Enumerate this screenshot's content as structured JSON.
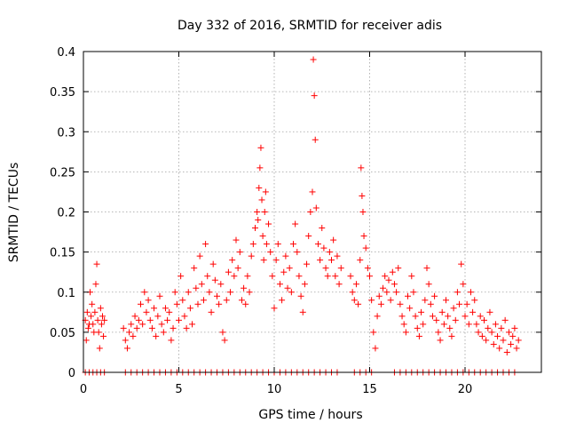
{
  "chart_data": {
    "type": "scatter",
    "title": "Day 332 of 2016, SRMTID for receiver adis",
    "xlabel": "GPS time / hours",
    "ylabel": "SRMTID / TECUs",
    "xlim": [
      0,
      24
    ],
    "ylim": [
      0,
      0.4
    ],
    "xticks": [
      0,
      5,
      10,
      15,
      20
    ],
    "xtick_labels": [
      "0",
      "5",
      "10",
      "15",
      "20"
    ],
    "yticks": [
      0,
      0.05,
      0.1,
      0.15,
      0.2,
      0.25,
      0.3,
      0.35,
      0.4
    ],
    "ytick_labels": [
      "0",
      "0.05",
      "0.1",
      "0.15",
      "0.2",
      "0.25",
      "0.3",
      "0.35",
      "0.4"
    ],
    "grid": true,
    "marker": "plus",
    "color": "#ff0000",
    "series": [
      {
        "name": "SRMTID",
        "points": [
          [
            0.1,
            0.065
          ],
          [
            0.15,
            0.04
          ],
          [
            0.2,
            0.075
          ],
          [
            0.25,
            0.055
          ],
          [
            0.3,
            0.06
          ],
          [
            0.35,
            0.1
          ],
          [
            0.4,
            0.07
          ],
          [
            0.45,
            0.085
          ],
          [
            0.5,
            0.06
          ],
          [
            0.55,
            0.05
          ],
          [
            0.6,
            0.075
          ],
          [
            0.65,
            0.11
          ],
          [
            0.7,
            0.135
          ],
          [
            0.75,
            0.065
          ],
          [
            0.8,
            0.05
          ],
          [
            0.85,
            0.03
          ],
          [
            0.9,
            0.08
          ],
          [
            0.95,
            0.06
          ],
          [
            1.0,
            0.07
          ],
          [
            1.05,
            0.045
          ],
          [
            1.1,
            0.065
          ],
          [
            2.1,
            0.055
          ],
          [
            2.2,
            0.04
          ],
          [
            2.3,
            0.03
          ],
          [
            2.4,
            0.05
          ],
          [
            2.5,
            0.06
          ],
          [
            2.6,
            0.045
          ],
          [
            2.7,
            0.07
          ],
          [
            2.8,
            0.055
          ],
          [
            2.9,
            0.065
          ],
          [
            3.0,
            0.085
          ],
          [
            3.1,
            0.06
          ],
          [
            3.2,
            0.1
          ],
          [
            3.3,
            0.075
          ],
          [
            3.4,
            0.09
          ],
          [
            3.5,
            0.065
          ],
          [
            3.6,
            0.055
          ],
          [
            3.7,
            0.08
          ],
          [
            3.8,
            0.045
          ],
          [
            3.9,
            0.07
          ],
          [
            4.0,
            0.095
          ],
          [
            4.1,
            0.06
          ],
          [
            4.2,
            0.05
          ],
          [
            4.3,
            0.08
          ],
          [
            4.4,
            0.065
          ],
          [
            4.5,
            0.075
          ],
          [
            4.6,
            0.04
          ],
          [
            4.7,
            0.055
          ],
          [
            4.8,
            0.1
          ],
          [
            4.9,
            0.085
          ],
          [
            5.0,
            0.065
          ],
          [
            5.1,
            0.12
          ],
          [
            5.2,
            0.09
          ],
          [
            5.3,
            0.07
          ],
          [
            5.4,
            0.055
          ],
          [
            5.5,
            0.1
          ],
          [
            5.6,
            0.08
          ],
          [
            5.7,
            0.06
          ],
          [
            5.8,
            0.13
          ],
          [
            5.9,
            0.105
          ],
          [
            6.0,
            0.085
          ],
          [
            6.1,
            0.145
          ],
          [
            6.2,
            0.11
          ],
          [
            6.3,
            0.09
          ],
          [
            6.4,
            0.16
          ],
          [
            6.5,
            0.12
          ],
          [
            6.6,
            0.1
          ],
          [
            6.7,
            0.075
          ],
          [
            6.8,
            0.135
          ],
          [
            6.9,
            0.115
          ],
          [
            7.0,
            0.095
          ],
          [
            7.1,
            0.085
          ],
          [
            7.2,
            0.11
          ],
          [
            7.3,
            0.05
          ],
          [
            7.4,
            0.04
          ],
          [
            7.5,
            0.09
          ],
          [
            7.6,
            0.125
          ],
          [
            7.7,
            0.1
          ],
          [
            7.8,
            0.14
          ],
          [
            7.9,
            0.12
          ],
          [
            8.0,
            0.165
          ],
          [
            8.1,
            0.13
          ],
          [
            8.2,
            0.15
          ],
          [
            8.3,
            0.09
          ],
          [
            8.4,
            0.105
          ],
          [
            8.5,
            0.085
          ],
          [
            8.6,
            0.12
          ],
          [
            8.7,
            0.1
          ],
          [
            8.8,
            0.145
          ],
          [
            8.9,
            0.16
          ],
          [
            9.0,
            0.18
          ],
          [
            9.1,
            0.2
          ],
          [
            9.15,
            0.19
          ],
          [
            9.2,
            0.23
          ],
          [
            9.25,
            0.255
          ],
          [
            9.3,
            0.28
          ],
          [
            9.35,
            0.215
          ],
          [
            9.4,
            0.17
          ],
          [
            9.45,
            0.14
          ],
          [
            9.5,
            0.2
          ],
          [
            9.55,
            0.225
          ],
          [
            9.6,
            0.16
          ],
          [
            9.7,
            0.185
          ],
          [
            9.8,
            0.15
          ],
          [
            9.9,
            0.12
          ],
          [
            10.0,
            0.08
          ],
          [
            10.1,
            0.14
          ],
          [
            10.2,
            0.16
          ],
          [
            10.3,
            0.11
          ],
          [
            10.4,
            0.09
          ],
          [
            10.5,
            0.125
          ],
          [
            10.6,
            0.145
          ],
          [
            10.7,
            0.105
          ],
          [
            10.8,
            0.13
          ],
          [
            10.9,
            0.1
          ],
          [
            11.0,
            0.16
          ],
          [
            11.1,
            0.185
          ],
          [
            11.2,
            0.15
          ],
          [
            11.3,
            0.12
          ],
          [
            11.4,
            0.095
          ],
          [
            11.5,
            0.075
          ],
          [
            11.6,
            0.11
          ],
          [
            11.7,
            0.135
          ],
          [
            11.8,
            0.17
          ],
          [
            11.9,
            0.2
          ],
          [
            12.0,
            0.225
          ],
          [
            12.05,
            0.39
          ],
          [
            12.1,
            0.345
          ],
          [
            12.15,
            0.29
          ],
          [
            12.2,
            0.205
          ],
          [
            12.3,
            0.16
          ],
          [
            12.4,
            0.14
          ],
          [
            12.5,
            0.18
          ],
          [
            12.6,
            0.155
          ],
          [
            12.7,
            0.13
          ],
          [
            12.8,
            0.12
          ],
          [
            12.9,
            0.15
          ],
          [
            13.0,
            0.14
          ],
          [
            13.1,
            0.165
          ],
          [
            13.2,
            0.12
          ],
          [
            13.3,
            0.145
          ],
          [
            13.4,
            0.11
          ],
          [
            13.5,
            0.13
          ],
          [
            14.0,
            0.12
          ],
          [
            14.1,
            0.1
          ],
          [
            14.2,
            0.09
          ],
          [
            14.3,
            0.11
          ],
          [
            14.4,
            0.085
          ],
          [
            14.5,
            0.14
          ],
          [
            14.55,
            0.255
          ],
          [
            14.6,
            0.22
          ],
          [
            14.65,
            0.2
          ],
          [
            14.7,
            0.17
          ],
          [
            14.8,
            0.155
          ],
          [
            14.9,
            0.13
          ],
          [
            15.0,
            0.12
          ],
          [
            15.1,
            0.09
          ],
          [
            15.2,
            0.05
          ],
          [
            15.3,
            0.03
          ],
          [
            15.4,
            0.07
          ],
          [
            15.5,
            0.095
          ],
          [
            15.6,
            0.085
          ],
          [
            15.7,
            0.105
          ],
          [
            15.8,
            0.12
          ],
          [
            15.9,
            0.1
          ],
          [
            16.0,
            0.115
          ],
          [
            16.1,
            0.09
          ],
          [
            16.2,
            0.125
          ],
          [
            16.3,
            0.11
          ],
          [
            16.4,
            0.1
          ],
          [
            16.5,
            0.13
          ],
          [
            16.6,
            0.085
          ],
          [
            16.7,
            0.07
          ],
          [
            16.8,
            0.06
          ],
          [
            16.9,
            0.05
          ],
          [
            17.0,
            0.095
          ],
          [
            17.1,
            0.08
          ],
          [
            17.2,
            0.12
          ],
          [
            17.3,
            0.1
          ],
          [
            17.4,
            0.07
          ],
          [
            17.5,
            0.055
          ],
          [
            17.6,
            0.045
          ],
          [
            17.7,
            0.075
          ],
          [
            17.8,
            0.06
          ],
          [
            17.9,
            0.09
          ],
          [
            18.0,
            0.13
          ],
          [
            18.1,
            0.11
          ],
          [
            18.2,
            0.085
          ],
          [
            18.3,
            0.07
          ],
          [
            18.4,
            0.095
          ],
          [
            18.5,
            0.065
          ],
          [
            18.6,
            0.05
          ],
          [
            18.7,
            0.04
          ],
          [
            18.8,
            0.075
          ],
          [
            18.9,
            0.06
          ],
          [
            19.0,
            0.09
          ],
          [
            19.1,
            0.07
          ],
          [
            19.2,
            0.055
          ],
          [
            19.3,
            0.045
          ],
          [
            19.4,
            0.08
          ],
          [
            19.5,
            0.065
          ],
          [
            19.6,
            0.1
          ],
          [
            19.7,
            0.085
          ],
          [
            19.8,
            0.135
          ],
          [
            19.9,
            0.11
          ],
          [
            20.0,
            0.07
          ],
          [
            20.1,
            0.085
          ],
          [
            20.2,
            0.06
          ],
          [
            20.3,
            0.1
          ],
          [
            20.4,
            0.075
          ],
          [
            20.5,
            0.09
          ],
          [
            20.6,
            0.06
          ],
          [
            20.7,
            0.05
          ],
          [
            20.8,
            0.07
          ],
          [
            20.9,
            0.045
          ],
          [
            21.0,
            0.065
          ],
          [
            21.1,
            0.04
          ],
          [
            21.2,
            0.055
          ],
          [
            21.3,
            0.075
          ],
          [
            21.4,
            0.05
          ],
          [
            21.5,
            0.035
          ],
          [
            21.6,
            0.06
          ],
          [
            21.7,
            0.045
          ],
          [
            21.8,
            0.03
          ],
          [
            21.9,
            0.055
          ],
          [
            22.0,
            0.04
          ],
          [
            22.1,
            0.065
          ],
          [
            22.2,
            0.025
          ],
          [
            22.3,
            0.05
          ],
          [
            22.4,
            0.035
          ],
          [
            22.5,
            0.045
          ],
          [
            22.6,
            0.055
          ],
          [
            22.7,
            0.03
          ],
          [
            22.8,
            0.04
          ],
          [
            0.1,
            0
          ],
          [
            0.3,
            0
          ],
          [
            0.5,
            0
          ],
          [
            0.7,
            0
          ],
          [
            0.9,
            0
          ],
          [
            1.1,
            0
          ],
          [
            2.2,
            0
          ],
          [
            2.5,
            0
          ],
          [
            2.8,
            0
          ],
          [
            3.1,
            0
          ],
          [
            3.4,
            0
          ],
          [
            3.7,
            0
          ],
          [
            4.0,
            0
          ],
          [
            4.3,
            0
          ],
          [
            4.6,
            0
          ],
          [
            4.9,
            0
          ],
          [
            5.2,
            0
          ],
          [
            5.5,
            0
          ],
          [
            5.8,
            0
          ],
          [
            6.1,
            0
          ],
          [
            6.4,
            0
          ],
          [
            6.7,
            0
          ],
          [
            7.0,
            0
          ],
          [
            7.3,
            0
          ],
          [
            7.6,
            0
          ],
          [
            7.9,
            0
          ],
          [
            8.2,
            0
          ],
          [
            8.5,
            0
          ],
          [
            8.8,
            0
          ],
          [
            9.1,
            0
          ],
          [
            9.4,
            0
          ],
          [
            9.7,
            0
          ],
          [
            10.0,
            0
          ],
          [
            10.3,
            0
          ],
          [
            10.6,
            0
          ],
          [
            10.9,
            0
          ],
          [
            11.2,
            0
          ],
          [
            11.5,
            0
          ],
          [
            11.8,
            0
          ],
          [
            12.1,
            0
          ],
          [
            12.4,
            0
          ],
          [
            12.7,
            0
          ],
          [
            13.0,
            0
          ],
          [
            13.3,
            0
          ],
          [
            14.2,
            0
          ],
          [
            14.5,
            0
          ],
          [
            14.8,
            0
          ],
          [
            15.1,
            0
          ],
          [
            16.3,
            0
          ],
          [
            16.6,
            0
          ],
          [
            16.9,
            0
          ],
          [
            17.2,
            0
          ],
          [
            17.5,
            0
          ],
          [
            17.8,
            0
          ],
          [
            18.1,
            0
          ],
          [
            18.4,
            0
          ],
          [
            18.7,
            0
          ],
          [
            19.0,
            0
          ],
          [
            19.3,
            0
          ],
          [
            19.6,
            0
          ],
          [
            19.9,
            0
          ],
          [
            20.2,
            0
          ],
          [
            20.5,
            0
          ],
          [
            20.8,
            0
          ],
          [
            21.1,
            0
          ],
          [
            21.4,
            0
          ],
          [
            21.7,
            0
          ],
          [
            22.0,
            0
          ],
          [
            22.3,
            0
          ],
          [
            22.6,
            0
          ]
        ]
      }
    ]
  }
}
